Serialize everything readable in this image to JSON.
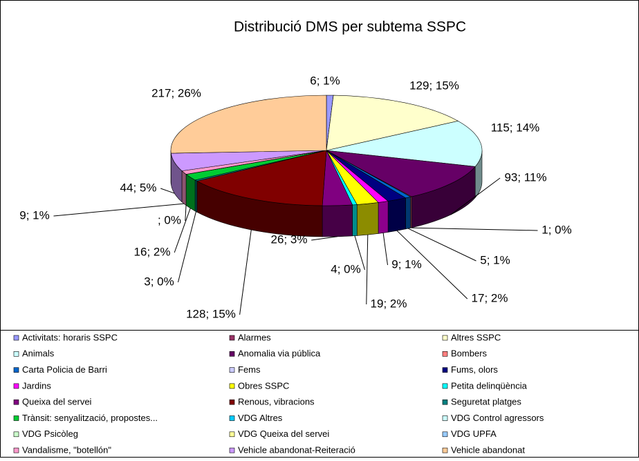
{
  "chart_data": {
    "type": "pie3d",
    "title": "Distribució DMS per subtema SSPC",
    "categories": [
      "Activitats: horaris SSPC",
      "Alarmes",
      "Altres SSPC",
      "Animals",
      "Anomalia via pública",
      "Bombers",
      "Carta Policia de Barri",
      "Fems",
      "Fums, olors",
      "Jardins",
      "Obres SSPC",
      "Petita delinqüència",
      "Queixa del servei",
      "Renous, vibracions",
      "Seguretat platges",
      "Trànsit: senyalització, propostes...",
      "VDG Altres",
      "VDG Control agressors",
      "VDG Psicòleg",
      "VDG Queixa del servei",
      "VDG UPFA",
      "Vandalisme, \"botellón\"",
      "Vehicle abandonat-Reiteració",
      "Vehicle abandonat"
    ],
    "values": [
      6,
      0,
      129,
      115,
      93,
      1,
      5,
      0,
      17,
      9,
      19,
      4,
      26,
      128,
      3,
      16,
      null,
      0,
      0,
      0,
      0,
      9,
      44,
      217
    ],
    "value_labels": [
      "6; 1%",
      null,
      "129; 15%",
      "115; 14%",
      "93; 11%",
      "1; 0%",
      "5; 1%",
      null,
      "17; 2%",
      "9; 1%",
      "19; 2%",
      "4; 0%",
      "26; 3%",
      "128; 15%",
      "3; 0%",
      "16; 2%",
      "; 0%",
      null,
      null,
      null,
      null,
      "9; 1%",
      "44; 5%",
      "217; 26%"
    ],
    "colors": [
      "#9999ff",
      "#993366",
      "#ffffcc",
      "#ccffff",
      "#660066",
      "#ff8080",
      "#0066cc",
      "#ccccff",
      "#000080",
      "#ff00ff",
      "#ffff00",
      "#00ffff",
      "#800080",
      "#800000",
      "#008080",
      "#00cc33",
      "#00ccff",
      "#ccffff",
      "#ccffcc",
      "#ffff99",
      "#99ccff",
      "#ff99cc",
      "#cc99ff",
      "#ffcc99"
    ],
    "legend": "bottom"
  }
}
